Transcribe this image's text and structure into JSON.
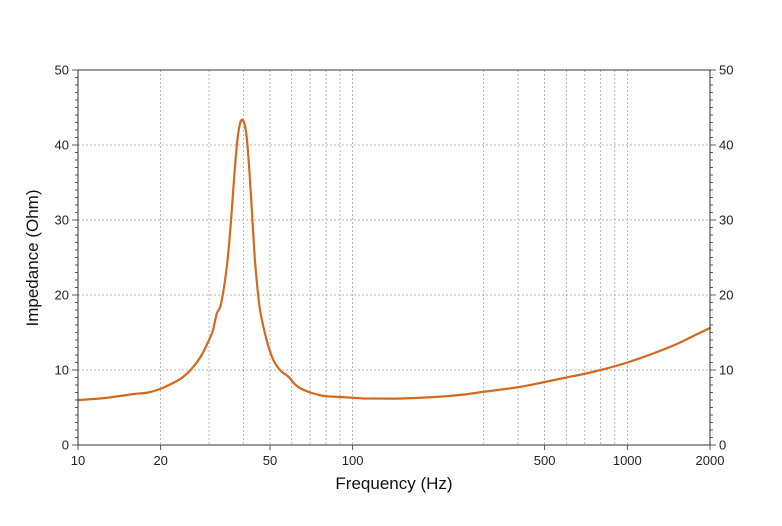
{
  "chart_data": {
    "type": "line",
    "title": "",
    "xlabel": "Frequency (Hz)",
    "ylabel": "Impedance (Ohm)",
    "x_scale": "log",
    "xlim": [
      10,
      2000
    ],
    "ylim": [
      0,
      50
    ],
    "grid": true,
    "x_tick_labels": [
      "10",
      "20",
      "50",
      "100",
      "500",
      "1000",
      "2000"
    ],
    "x_grid_lines": [
      20,
      30,
      40,
      50,
      60,
      70,
      80,
      90,
      100,
      300,
      400,
      500,
      600,
      700,
      800,
      900,
      1000
    ],
    "y_ticks": [
      0,
      10,
      20,
      30,
      40,
      50
    ],
    "y_tick_labels": [
      "0",
      "10",
      "20",
      "30",
      "40",
      "50"
    ],
    "series": [
      {
        "color": "#d2691e",
        "x": [
          10,
          12,
          14,
          16,
          18,
          20,
          22,
          24,
          26,
          28,
          30,
          31,
          32,
          33,
          34,
          35,
          36,
          37,
          38,
          39,
          40,
          41,
          42,
          43,
          44,
          45,
          46,
          48,
          50,
          52,
          55,
          58,
          60,
          62,
          65,
          70,
          75,
          80,
          90,
          100,
          110,
          120,
          150,
          200,
          250,
          300,
          400,
          500,
          600,
          700,
          800,
          900,
          1000,
          1200,
          1500,
          1800,
          2000
        ],
        "y": [
          6.0,
          6.2,
          6.5,
          6.8,
          7.0,
          7.5,
          8.2,
          9.0,
          10.2,
          11.8,
          14.0,
          15.3,
          17.5,
          18.5,
          21.0,
          24.5,
          29.5,
          35.5,
          40.5,
          43.0,
          43.2,
          41.5,
          37.0,
          31.0,
          25.0,
          21.0,
          18.0,
          14.8,
          12.5,
          11.0,
          9.8,
          9.2,
          8.6,
          8.0,
          7.5,
          7.0,
          6.7,
          6.5,
          6.4,
          6.3,
          6.2,
          6.2,
          6.2,
          6.4,
          6.7,
          7.1,
          7.7,
          8.4,
          9.0,
          9.5,
          10.0,
          10.5,
          11.0,
          12.0,
          13.4,
          14.8,
          15.6
        ]
      }
    ]
  }
}
